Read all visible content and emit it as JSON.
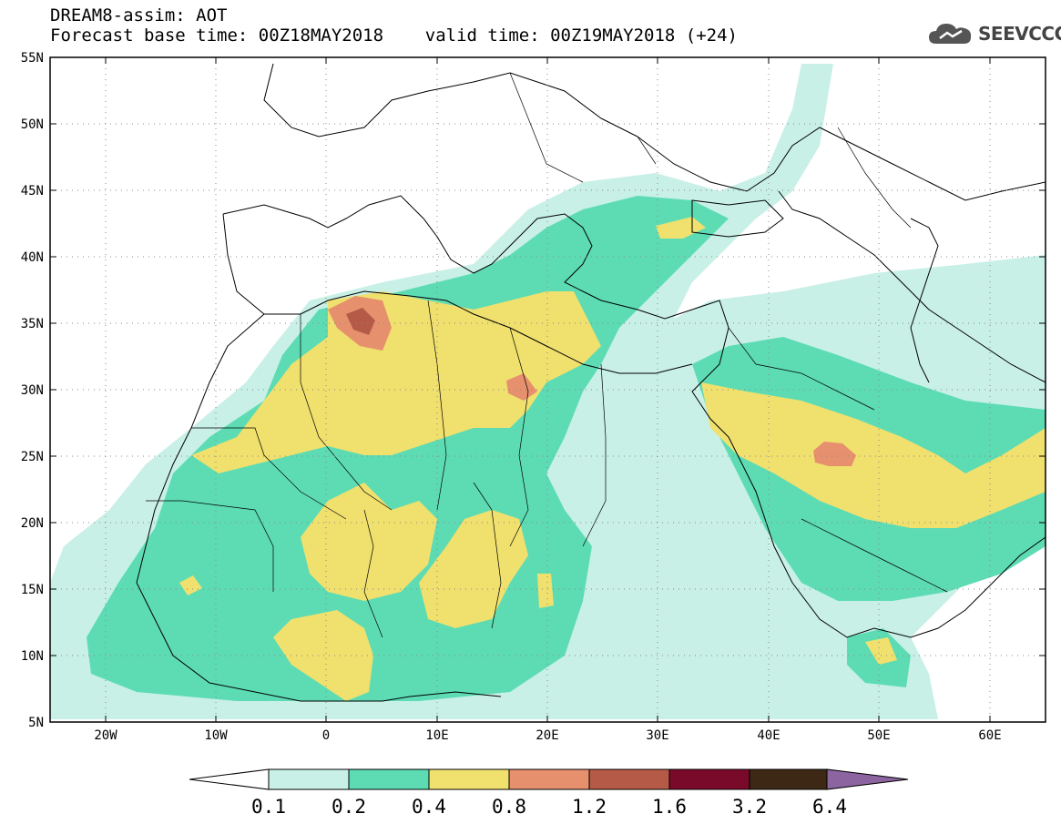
{
  "header": {
    "title_line1": "DREAM8-assim: AOT",
    "title_line2": "Forecast base time: 00Z18MAY2018    valid time: 00Z19MAY2018 (+24)"
  },
  "logo": {
    "text": "SEEVCCC",
    "icon": "cloud-icon"
  },
  "map": {
    "lon_range": [
      -25,
      65
    ],
    "lat_range": [
      5,
      55
    ],
    "lat_ticks": [
      "55N",
      "50N",
      "45N",
      "40N",
      "35N",
      "30N",
      "25N",
      "20N",
      "15N",
      "10N",
      "5N"
    ],
    "lon_ticks": [
      "20W",
      "10W",
      "0",
      "10E",
      "20E",
      "30E",
      "40E",
      "50E",
      "60E"
    ],
    "grid": "dotted"
  },
  "colorbar": {
    "labels": [
      "0.1",
      "0.2",
      "0.4",
      "0.8",
      "1.2",
      "1.6",
      "3.2",
      "6.4"
    ],
    "colors": [
      "#c8f0e6",
      "#5ddcb4",
      "#f0e06e",
      "#e6906e",
      "#b45a46",
      "#7a0a2a",
      "#3c2814",
      "#8c64a0"
    ]
  }
}
